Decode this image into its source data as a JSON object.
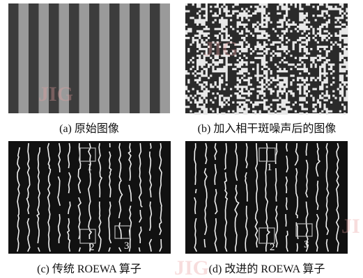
{
  "panels": [
    {
      "caption": "(a) 原始图像"
    },
    {
      "caption": "(b) 加入相干斑噪声后的图像"
    },
    {
      "caption": "(c) 传统 ROEWA 算子",
      "box_labels": [
        "1",
        "2",
        "3"
      ]
    },
    {
      "caption": "(d) 改进的 ROEWA 算子",
      "box_labels": [
        "1",
        "2",
        "3"
      ]
    }
  ],
  "watermarks": [
    "JIG",
    "JIG",
    "JIG",
    "JI"
  ]
}
